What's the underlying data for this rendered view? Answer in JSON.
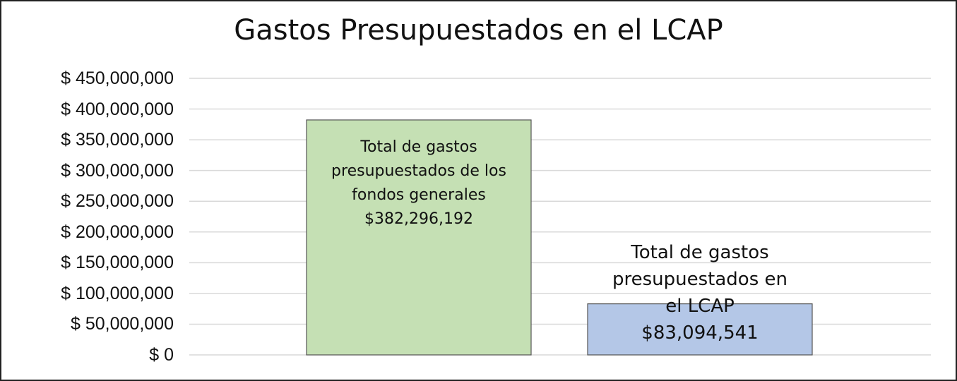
{
  "chart_data": {
    "type": "bar",
    "title": "Gastos Presupuestados en el LCAP",
    "categories": [
      "Total de gastos presupuestados de los fondos generales",
      "Total de gastos presupuestados en el LCAP"
    ],
    "values": [
      382296192,
      83094541
    ],
    "value_labels": [
      "$382,296,192",
      "$83,094,541"
    ],
    "colors": [
      "#c5e0b4",
      "#b4c7e7"
    ],
    "ylim": [
      0,
      450000000
    ],
    "yticks": [
      {
        "value": 0,
        "label": "$ 0"
      },
      {
        "value": 50000000,
        "label": "$ 50,000,000"
      },
      {
        "value": 100000000,
        "label": "$ 100,000,000"
      },
      {
        "value": 150000000,
        "label": "$ 150,000,000"
      },
      {
        "value": 200000000,
        "label": "$ 200,000,000"
      },
      {
        "value": 250000000,
        "label": "$ 250,000,000"
      },
      {
        "value": 300000000,
        "label": "$ 300,000,000"
      },
      {
        "value": 350000000,
        "label": "$ 350,000,000"
      },
      {
        "value": 400000000,
        "label": "$ 400,000,000"
      },
      {
        "value": 450000000,
        "label": "$ 450,000,000"
      }
    ],
    "grid": true
  }
}
